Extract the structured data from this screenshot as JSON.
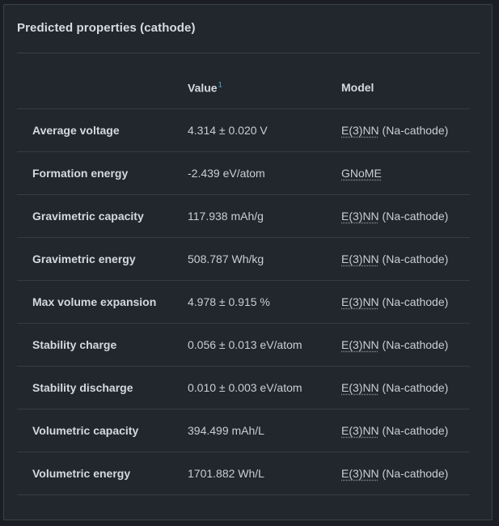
{
  "panel": {
    "title": "Predicted properties (cathode)"
  },
  "table": {
    "headers": {
      "name": "",
      "value": "Value",
      "value_footnote": "1",
      "model": "Model"
    },
    "rows": [
      {
        "name": "Average voltage",
        "value": "4.314 ± 0.020 V",
        "model_abbr": "E(3)NN",
        "model_suffix": " (Na-cathode)"
      },
      {
        "name": "Formation energy",
        "value": "-2.439 eV/atom",
        "model_abbr": "GNoME",
        "model_suffix": ""
      },
      {
        "name": "Gravimetric capacity",
        "value": "117.938 mAh/g",
        "model_abbr": "E(3)NN",
        "model_suffix": " (Na-cathode)"
      },
      {
        "name": "Gravimetric energy",
        "value": "508.787 Wh/kg",
        "model_abbr": "E(3)NN",
        "model_suffix": " (Na-cathode)"
      },
      {
        "name": "Max volume expansion",
        "value": "4.978 ± 0.915 %",
        "model_abbr": "E(3)NN",
        "model_suffix": " (Na-cathode)"
      },
      {
        "name": "Stability charge",
        "value": "0.056 ± 0.013 eV/atom",
        "model_abbr": "E(3)NN",
        "model_suffix": " (Na-cathode)"
      },
      {
        "name": "Stability discharge",
        "value": "0.010 ± 0.003 eV/atom",
        "model_abbr": "E(3)NN",
        "model_suffix": " (Na-cathode)"
      },
      {
        "name": "Volumetric capacity",
        "value": "394.499 mAh/L",
        "model_abbr": "E(3)NN",
        "model_suffix": " (Na-cathode)"
      },
      {
        "name": "Volumetric energy",
        "value": "1701.882 Wh/L",
        "model_abbr": "E(3)NN",
        "model_suffix": " (Na-cathode)"
      }
    ]
  }
}
